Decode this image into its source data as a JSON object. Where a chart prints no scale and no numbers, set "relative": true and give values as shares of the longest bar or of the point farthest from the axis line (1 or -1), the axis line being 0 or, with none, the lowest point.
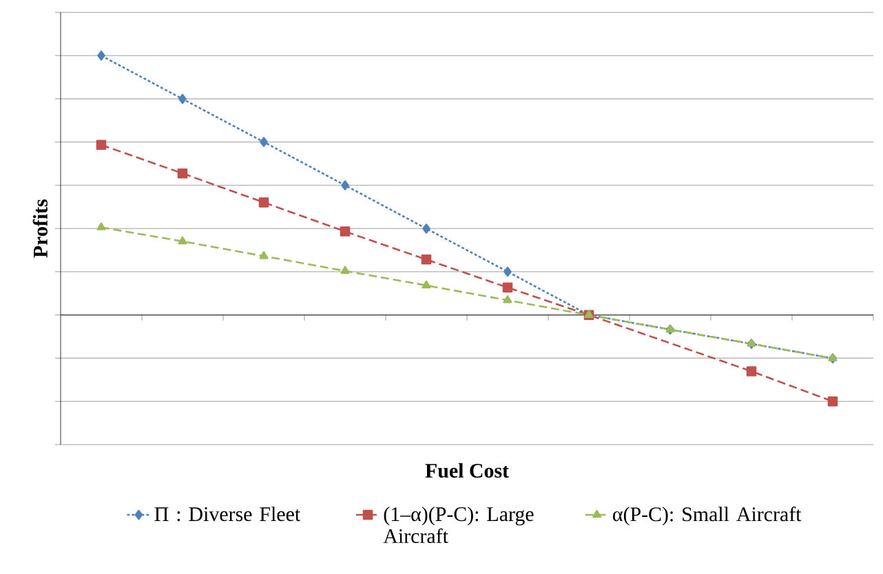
{
  "chart_data": {
    "type": "line",
    "relative": true,
    "xlabel": "Fuel Cost",
    "ylabel": "Profits",
    "categories": [
      null,
      null,
      null,
      null,
      null,
      null,
      null,
      null,
      null,
      null
    ],
    "grid": "y",
    "legend": "bottom",
    "series": [
      {
        "name": "Π : Diverse Fleet",
        "color": "#4f81bd",
        "marker": "diamond",
        "line_style": "dotted",
        "values": [
          1,
          0.833,
          0.667,
          0.5,
          0.333,
          0.167,
          0,
          -0.056,
          -0.111,
          -0.167
        ]
      },
      {
        "name": "(1–α)(P-C): Large Aircraft",
        "color": "#c0504d",
        "marker": "square",
        "line_style": "dashed",
        "values": [
          0.656,
          0.546,
          0.434,
          0.322,
          0.214,
          0.106,
          0,
          null,
          -0.217,
          -0.333
        ]
      },
      {
        "name": "α(P-C): Small Aircraft",
        "color": "#9bbb59",
        "marker": "triangle",
        "line_style": "dashed",
        "values": [
          0.338,
          0.284,
          0.227,
          0.17,
          0.114,
          0.057,
          0,
          -0.056,
          -0.111,
          -0.167
        ]
      }
    ]
  }
}
